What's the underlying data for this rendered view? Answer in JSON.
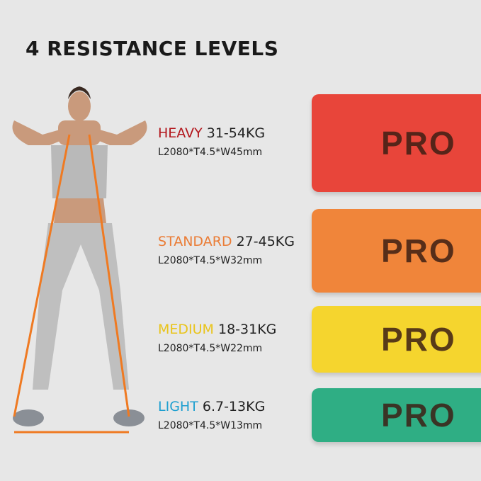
{
  "title": "4 RESISTANCE LEVELS",
  "levels": [
    {
      "name": "HEAVY",
      "range": "31-54KG",
      "dims": "L2080*T4.5*W45mm",
      "label_color": "#b3161c",
      "band_color": "#e8453a"
    },
    {
      "name": "STANDARD",
      "range": "27-45KG",
      "dims": "L2080*T4.5*W32mm",
      "label_color": "#ea7d37",
      "band_color": "#f0853a"
    },
    {
      "name": "MEDIUM",
      "range": "18-31KG",
      "dims": "L2080*T4.5*W22mm",
      "label_color": "#e9c41b",
      "band_color": "#f5d52e"
    },
    {
      "name": "LIGHT",
      "range": "6.7-13KG",
      "dims": "L2080*T4.5*W13mm",
      "label_color": "#1e9fd0",
      "band_color": "#2fae84"
    }
  ],
  "band_logo": "PRO"
}
